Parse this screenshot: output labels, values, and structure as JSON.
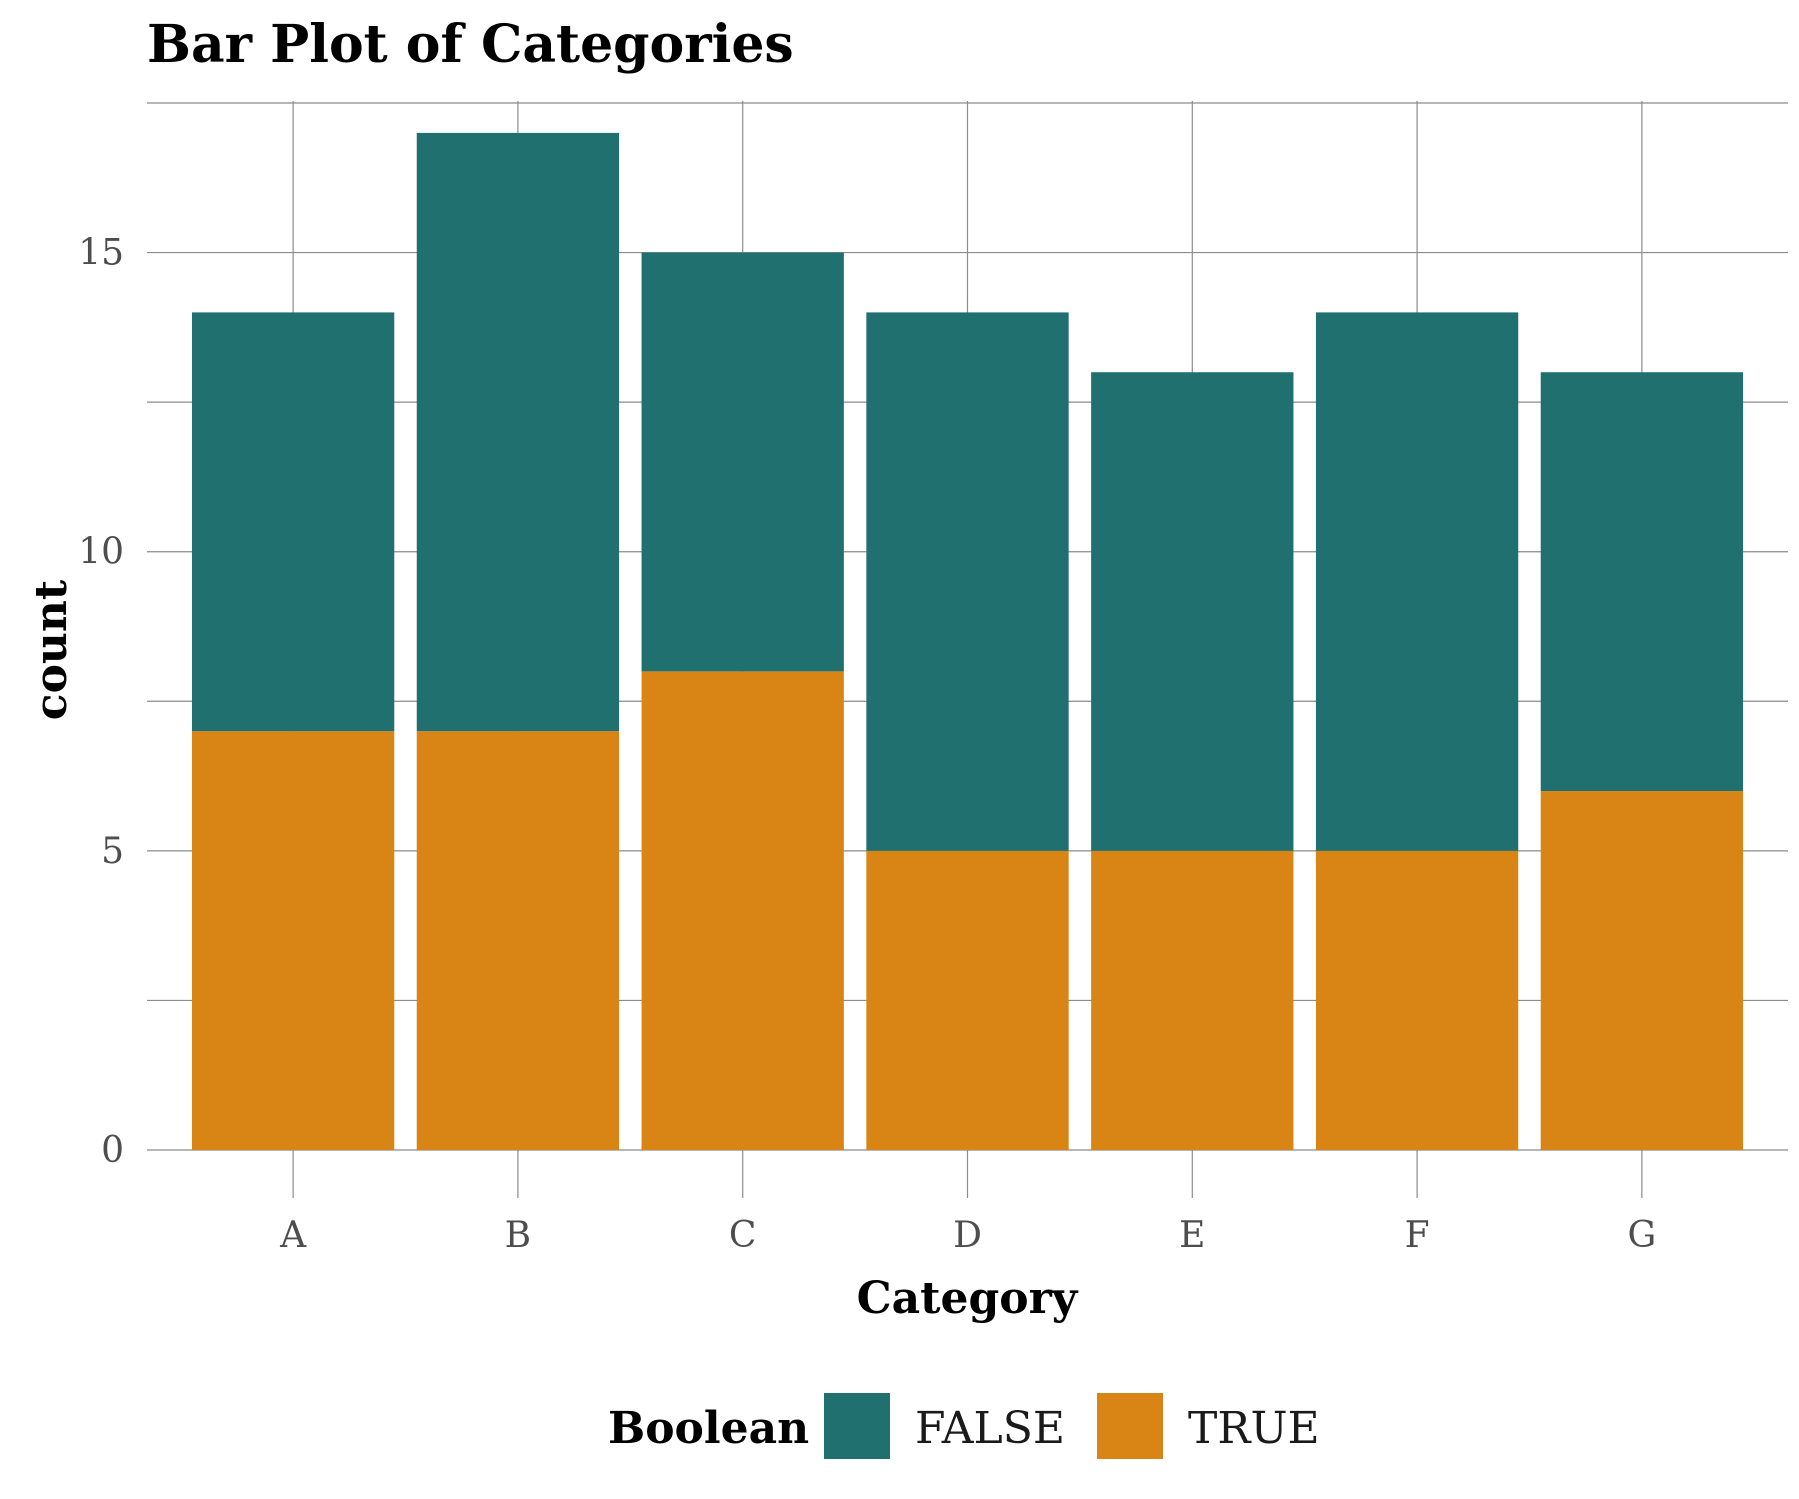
{
  "chart_data": {
    "type": "bar",
    "stacked": true,
    "title": "Bar Plot of Categories",
    "xlabel": "Category",
    "ylabel": "count",
    "categories": [
      "A",
      "B",
      "C",
      "D",
      "E",
      "F",
      "G"
    ],
    "series": [
      {
        "name": "FALSE",
        "values": [
          7,
          10,
          7,
          9,
          8,
          9,
          7
        ],
        "color": "#207070"
      },
      {
        "name": "TRUE",
        "values": [
          7,
          7,
          8,
          5,
          5,
          5,
          6
        ],
        "color": "#d98515"
      }
    ],
    "yticks": [
      0,
      5,
      10,
      15
    ],
    "ylim": [
      0,
      17.5
    ],
    "grid": true,
    "legend": {
      "title": "Boolean",
      "position": "bottom"
    }
  }
}
